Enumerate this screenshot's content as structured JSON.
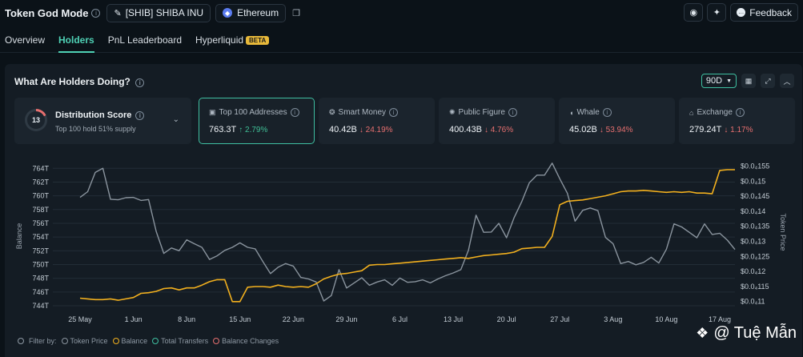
{
  "topbar": {
    "title": "Token God Mode",
    "token": "[SHIB] SHIBA INU",
    "chain": "Ethereum",
    "feedback": "Feedback"
  },
  "tabs": [
    {
      "label": "Overview"
    },
    {
      "label": "Holders"
    },
    {
      "label": "PnL Leaderboard"
    },
    {
      "label": "Hyperliquid"
    }
  ],
  "beta_badge": "BETA",
  "panel": {
    "title": "What Are Holders Doing?",
    "period": "90D"
  },
  "distribution": {
    "score": "13",
    "title": "Distribution Score",
    "subtitle": "Top 100 hold 51% supply"
  },
  "cards": [
    {
      "label": "Top 100 Addresses",
      "value": "763.3T",
      "change": "↑ 2.79%",
      "direction": "up",
      "icon": "wallet-icon"
    },
    {
      "label": "Smart Money",
      "value": "40.42B",
      "change": "↓ 24.19%",
      "direction": "down",
      "icon": "brain-icon"
    },
    {
      "label": "Public Figure",
      "value": "400.43B",
      "change": "↓ 4.76%",
      "direction": "down",
      "icon": "bulb-icon"
    },
    {
      "label": "Whale",
      "value": "45.02B",
      "change": "↓ 53.94%",
      "direction": "down",
      "icon": "whale-icon"
    },
    {
      "label": "Exchange",
      "value": "279.24T",
      "change": "↓ 1.17%",
      "direction": "down",
      "icon": "bank-icon"
    }
  ],
  "legend": {
    "filter_label": "Filter by:",
    "items": [
      {
        "label": "Token Price",
        "color": "#8a949e"
      },
      {
        "label": "Balance",
        "color": "#f2b01e"
      },
      {
        "label": "Total Transfers",
        "color": "#3fbfa1"
      },
      {
        "label": "Balance Changes",
        "color": "#e66f6f"
      }
    ]
  },
  "watermark": "@ Tuệ Mẫn",
  "chart_data": {
    "type": "line",
    "ylabel": "Balance",
    "y2label": "Token Price",
    "ylim": [
      743.3,
      765.2
    ],
    "y2lim": [
      1.07e-05,
      1.57e-05
    ],
    "y_ticks": [
      "744T",
      "746T",
      "748T",
      "750T",
      "752T",
      "754T",
      "756T",
      "758T",
      "760T",
      "762T",
      "764T"
    ],
    "y_tick_values": [
      744,
      746,
      748,
      750,
      752,
      754,
      756,
      758,
      760,
      762,
      764
    ],
    "y2_ticks": [
      "$0.0₄11",
      "$0.0₄115",
      "$0.0₄12",
      "$0.0₄125",
      "$0.0₄13",
      "$0.0₄135",
      "$0.0₄14",
      "$0.0₄145",
      "$0.0₄15",
      "$0.0₄155"
    ],
    "y2_tick_values": [
      1.1e-05,
      1.15e-05,
      1.2e-05,
      1.25e-05,
      1.3e-05,
      1.35e-05,
      1.4e-05,
      1.45e-05,
      1.5e-05,
      1.55e-05
    ],
    "x_ticks": [
      "25 May",
      "1 Jun",
      "8 Jun",
      "15 Jun",
      "22 Jun",
      "29 Jun",
      "6 Jul",
      "13 Jul",
      "20 Jul",
      "27 Jul",
      "3 Aug",
      "10 Aug",
      "17 Aug"
    ],
    "x_start_label": "Day",
    "x_range": [
      -4,
      86
    ],
    "x_tick_days": [
      4,
      11,
      18,
      25,
      32,
      39,
      46,
      53,
      60,
      67,
      74,
      81,
      88
    ],
    "grid": true,
    "series": [
      {
        "name": "Balance",
        "color": "#f2b01e",
        "axis": "left",
        "x": [
          0,
          1,
          2,
          3,
          4,
          5,
          6,
          7,
          8,
          9,
          10,
          11,
          12,
          13,
          14,
          15,
          16,
          17,
          18,
          19,
          20,
          21,
          22,
          23,
          24,
          25,
          26,
          27,
          28,
          29,
          30,
          31,
          32,
          33,
          34,
          35,
          36,
          37,
          38,
          39,
          40,
          41,
          42,
          43,
          44,
          45,
          46,
          47,
          48,
          49,
          50,
          51,
          52,
          53,
          54,
          55,
          56,
          57,
          58,
          59,
          60,
          61,
          62,
          63,
          64,
          65,
          66,
          67,
          68,
          69,
          70,
          71,
          72,
          73,
          74,
          75,
          76,
          77,
          78,
          79,
          80,
          81,
          82,
          83,
          84,
          85,
          86
        ],
        "values": [
          745.1,
          745.0,
          744.9,
          744.9,
          745.0,
          744.8,
          745.0,
          745.2,
          745.8,
          745.9,
          746.1,
          746.5,
          746.6,
          746.3,
          746.6,
          746.6,
          747.0,
          747.5,
          747.8,
          747.8,
          744.6,
          744.6,
          746.7,
          746.8,
          746.8,
          746.7,
          747.0,
          746.8,
          746.7,
          746.8,
          746.7,
          747.2,
          747.9,
          748.3,
          748.6,
          748.7,
          748.9,
          749.1,
          749.9,
          750.0,
          750.0,
          750.1,
          750.2,
          750.3,
          750.4,
          750.5,
          750.6,
          750.7,
          750.8,
          750.9,
          751.0,
          750.9,
          751.1,
          751.3,
          751.4,
          751.5,
          751.6,
          751.8,
          752.3,
          752.4,
          752.5,
          752.5,
          754.1,
          758.7,
          759.2,
          759.3,
          759.4,
          759.6,
          759.8,
          760.0,
          760.3,
          760.6,
          760.7,
          760.7,
          760.8,
          760.7,
          760.6,
          760.5,
          760.6,
          760.5,
          760.6,
          760.4,
          760.4,
          760.3,
          763.7,
          763.8,
          763.8
        ]
      },
      {
        "name": "Token Price",
        "color": "#8a949e",
        "axis": "right",
        "x": [
          0,
          1,
          2,
          3,
          4,
          5,
          6,
          7,
          8,
          9,
          10,
          11,
          12,
          13,
          14,
          15,
          16,
          17,
          18,
          19,
          20,
          21,
          22,
          23,
          24,
          25,
          26,
          27,
          28,
          29,
          30,
          31,
          32,
          33,
          34,
          35,
          36,
          37,
          38,
          39,
          40,
          41,
          42,
          43,
          44,
          45,
          46,
          47,
          48,
          49,
          50,
          51,
          52,
          53,
          54,
          55,
          56,
          57,
          58,
          59,
          60,
          61,
          62,
          63,
          64,
          65,
          66,
          67,
          68,
          69,
          70,
          71,
          72,
          73,
          74,
          75,
          76,
          77,
          78,
          79,
          80,
          81,
          82,
          83,
          84,
          85,
          86
        ],
        "values": [
          1.446e-05,
          1.465e-05,
          1.529e-05,
          1.543e-05,
          1.44e-05,
          1.438e-05,
          1.445e-05,
          1.446e-05,
          1.436e-05,
          1.439e-05,
          1.333e-05,
          1.26e-05,
          1.278e-05,
          1.269e-05,
          1.305e-05,
          1.292e-05,
          1.28e-05,
          1.24e-05,
          1.252e-05,
          1.27e-05,
          1.28e-05,
          1.295e-05,
          1.28e-05,
          1.275e-05,
          1.233e-05,
          1.193e-05,
          1.214e-05,
          1.226e-05,
          1.218e-05,
          1.18e-05,
          1.175e-05,
          1.165e-05,
          1.102e-05,
          1.12e-05,
          1.206e-05,
          1.145e-05,
          1.162e-05,
          1.179e-05,
          1.154e-05,
          1.165e-05,
          1.172e-05,
          1.154e-05,
          1.178e-05,
          1.164e-05,
          1.166e-05,
          1.172e-05,
          1.162e-05,
          1.175e-05,
          1.186e-05,
          1.195e-05,
          1.206e-05,
          1.27e-05,
          1.387e-05,
          1.33e-05,
          1.331e-05,
          1.36e-05,
          1.312e-05,
          1.379e-05,
          1.432e-05,
          1.495e-05,
          1.52e-05,
          1.52e-05,
          1.56e-05,
          1.508e-05,
          1.46e-05,
          1.367e-05,
          1.403e-05,
          1.411e-05,
          1.402e-05,
          1.313e-05,
          1.292e-05,
          1.226e-05,
          1.233e-05,
          1.222e-05,
          1.23e-05,
          1.247e-05,
          1.228e-05,
          1.274e-05,
          1.358e-05,
          1.348e-05,
          1.33e-05,
          1.312e-05,
          1.358e-05,
          1.323e-05,
          1.327e-05,
          1.304e-05,
          1.273e-05
        ]
      }
    ]
  }
}
